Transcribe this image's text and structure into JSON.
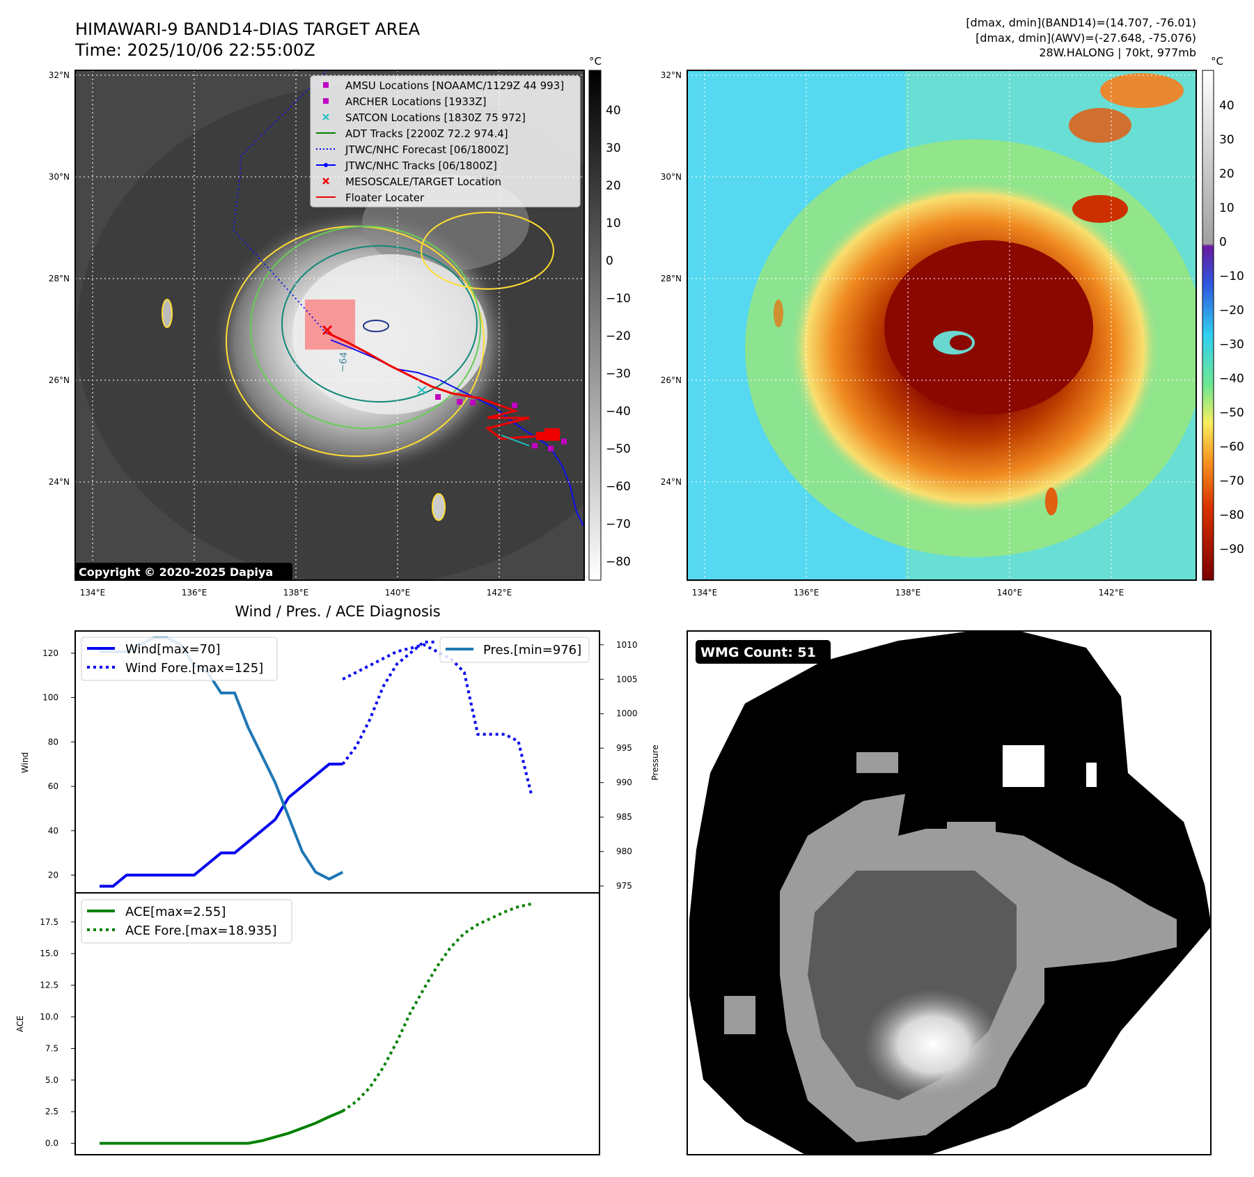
{
  "header": {
    "title_line1": "HIMAWARI-9 BAND14-DIAS TARGET AREA",
    "title_line2": "Time: 2025/10/06 22:55:00Z",
    "info_line1": "[dmax, dmin](BAND14)=(14.707, -76.01)",
    "info_line2": "[dmax, dmin](AWV)=(-27.648, -75.076)",
    "info_line3": "28W.HALONG | 70kt, 977mb"
  },
  "copyright": "Copyright © 2020-2025 Dapiya",
  "wmg_label": "WMG Count: 51",
  "colorbar_unit": "°C",
  "ir_panel": {
    "lat_ticks": [
      "32°N",
      "30°N",
      "28°N",
      "26°N",
      "24°N"
    ],
    "lon_ticks": [
      "134°E",
      "136°E",
      "138°E",
      "140°E",
      "142°E"
    ],
    "colorbar_ticks": [
      "40",
      "30",
      "20",
      "10",
      "0",
      "−10",
      "−20",
      "−30",
      "−40",
      "−50",
      "−60",
      "−70",
      "−80"
    ],
    "legend": [
      {
        "label": "AMSU Locations [NOAAMC/1129Z 44 993]",
        "color": "#c000c0",
        "marker": "square"
      },
      {
        "label": "ARCHER Locations [1933Z]",
        "color": "#c000c0",
        "marker": "square"
      },
      {
        "label": "SATCON Locations [1830Z 75 972]",
        "color": "#20c0c0",
        "marker": "x"
      },
      {
        "label": "ADT Tracks [2200Z 72.2 974.4]",
        "color": "#008000",
        "marker": "line"
      },
      {
        "label": "JTWC/NHC Forecast [06/1800Z]",
        "color": "#0000ff",
        "marker": "dotted"
      },
      {
        "label": "JTWC/NHC Tracks [06/1800Z]",
        "color": "#0000ff",
        "marker": "line-dot"
      },
      {
        "label": "MESOSCALE/TARGET Location",
        "color": "#ff0000",
        "marker": "x"
      },
      {
        "label": "Floater Locater",
        "color": "#ff0000",
        "marker": "line"
      }
    ],
    "contour_label": "−64"
  },
  "awv_panel": {
    "lat_ticks": [
      "32°N",
      "30°N",
      "28°N",
      "26°N",
      "24°N"
    ],
    "lon_ticks": [
      "134°E",
      "136°E",
      "138°E",
      "140°E",
      "142°E"
    ],
    "colorbar_ticks": [
      "40",
      "30",
      "20",
      "10",
      "0",
      "−10",
      "−20",
      "−30",
      "−40",
      "−50",
      "−60",
      "−70",
      "−80",
      "−90"
    ]
  },
  "chart_data": [
    {
      "type": "line",
      "title": "Wind / Pres. / ACE Diagnosis",
      "ylabel": "Wind",
      "ylabel_right": "Pressure",
      "ylim": [
        12,
        130
      ],
      "ylim_right": [
        974,
        1012
      ],
      "yticks": [
        20,
        40,
        60,
        80,
        100,
        120
      ],
      "yticks_right": [
        975,
        980,
        985,
        990,
        995,
        1000,
        1005,
        1010
      ],
      "legend_left": [
        "Wind[max=70]",
        "Wind Fore.[max=125]"
      ],
      "legend_right": [
        "Pres.[min=976]"
      ],
      "series": [
        {
          "name": "Wind[max=70]",
          "style": "solid",
          "color": "#0000ee",
          "x": [
            0,
            1,
            2,
            3,
            4,
            5,
            6,
            7,
            8,
            9,
            10,
            11,
            12,
            13,
            14
          ],
          "y": [
            15,
            15,
            20,
            20,
            20,
            20,
            20,
            20,
            25,
            30,
            30,
            35,
            40,
            45,
            55
          ]
        },
        {
          "name": "Wind[max=70]",
          "style": "solid",
          "color": "#0000ee",
          "x": [
            14,
            15,
            16,
            17,
            18
          ],
          "y": [
            55,
            60,
            65,
            70,
            70
          ]
        },
        {
          "name": "Wind Fore.[max=125]",
          "style": "dotted",
          "color": "#0000ee",
          "x": [
            18,
            19,
            20,
            21,
            22,
            23,
            24,
            25
          ],
          "y": [
            70,
            78,
            90,
            105,
            115,
            120,
            125,
            125
          ]
        },
        {
          "name": "Pres.[min=976]",
          "style": "solid",
          "color": "#1f77b4",
          "axis": "right",
          "x": [
            0,
            1,
            2,
            3,
            4,
            5,
            6,
            7,
            8,
            9,
            10,
            11,
            12,
            13,
            14,
            15,
            16,
            17,
            18
          ],
          "y": [
            1009,
            1009,
            1009,
            1010,
            1011,
            1011,
            1010,
            1007,
            1006,
            1003,
            1003,
            998,
            994,
            990,
            985,
            980,
            977,
            976,
            977
          ]
        }
      ],
      "pressure_forecast_dotted": {
        "x": [
          18,
          20,
          22,
          24,
          25,
          26,
          27,
          28,
          29,
          30,
          31,
          32
        ],
        "y": [
          1005,
          1007,
          1009,
          1010,
          1009,
          1008,
          1006,
          997,
          997,
          997,
          996,
          988
        ]
      }
    },
    {
      "type": "line",
      "ylabel": "ACE",
      "ylim": [
        -0.9,
        19.8
      ],
      "yticks": [
        0.0,
        2.5,
        5.0,
        7.5,
        10.0,
        12.5,
        15.0,
        17.5
      ],
      "ytick_labels": [
        "0.0",
        "2.5",
        "5.0",
        "7.5",
        "10.0",
        "12.5",
        "15.0",
        "17.5"
      ],
      "legend": [
        "ACE[max=2.55]",
        "ACE Fore.[max=18.935]"
      ],
      "series": [
        {
          "name": "ACE[max=2.55]",
          "style": "solid",
          "color": "#008000",
          "x": [
            0,
            2,
            4,
            6,
            8,
            10,
            11,
            12,
            13,
            14,
            15,
            16,
            17,
            18
          ],
          "y": [
            0,
            0,
            0,
            0,
            0,
            0,
            0,
            0.2,
            0.5,
            0.8,
            1.2,
            1.6,
            2.1,
            2.55
          ]
        },
        {
          "name": "ACE Fore.[max=18.935]",
          "style": "dotted",
          "color": "#008000",
          "x": [
            18,
            19,
            20,
            21,
            22,
            23,
            24,
            25,
            26,
            27,
            28,
            29,
            30,
            31,
            32
          ],
          "y": [
            2.55,
            3.3,
            4.4,
            6.0,
            8.0,
            10.3,
            12.2,
            14.0,
            15.5,
            16.6,
            17.3,
            17.8,
            18.3,
            18.7,
            18.935
          ]
        }
      ]
    }
  ]
}
